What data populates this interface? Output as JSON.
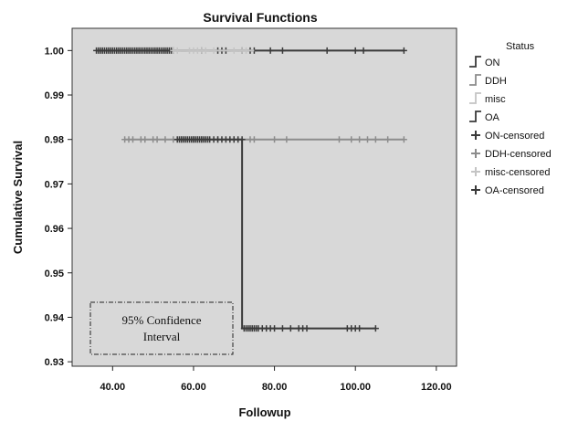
{
  "chart_data": {
    "type": "line",
    "title": "Survival Functions",
    "xlabel": "Followup",
    "ylabel": "Cumulative Survival",
    "xlim": [
      30,
      125
    ],
    "ylim": [
      0.929,
      1.005
    ],
    "x_ticks": [
      {
        "value": 40,
        "label": "40.00"
      },
      {
        "value": 60,
        "label": "60.00"
      },
      {
        "value": 80,
        "label": "80.00"
      },
      {
        "value": 100,
        "label": "100.00"
      },
      {
        "value": 120,
        "label": "120.00"
      }
    ],
    "y_ticks": [
      {
        "value": 0.93,
        "label": "0.93"
      },
      {
        "value": 0.94,
        "label": "0.94"
      },
      {
        "value": 0.95,
        "label": "0.95"
      },
      {
        "value": 0.96,
        "label": "0.96"
      },
      {
        "value": 0.97,
        "label": "0.97"
      },
      {
        "value": 0.98,
        "label": "0.98"
      },
      {
        "value": 0.99,
        "label": "0.99"
      },
      {
        "value": 1.0,
        "label": "1.00"
      }
    ],
    "grid": false,
    "legend_title": "Status",
    "legend_position": "right",
    "series": [
      {
        "name": "ON",
        "color": "#3a3a3a",
        "steps": [
          [
            36,
            1.0
          ],
          [
            112,
            1.0
          ]
        ],
        "censored": [
          36,
          36.5,
          37,
          37.5,
          38,
          38.5,
          39,
          39.5,
          40,
          40.5,
          41,
          41.5,
          42,
          42.5,
          43,
          43.5,
          44,
          44.5,
          45,
          45.5,
          46,
          46.5,
          47,
          47.5,
          48,
          48.5,
          49,
          49.5,
          50,
          50.5,
          51,
          51.5,
          52,
          52.5,
          53,
          53.5,
          54,
          54.5,
          55,
          62,
          66,
          67,
          68,
          72,
          74,
          75,
          79,
          82,
          93,
          100,
          102,
          112
        ]
      },
      {
        "name": "DDH",
        "color": "#8c8c8c",
        "steps": [
          [
            43,
            0.98
          ],
          [
            112,
            0.98
          ]
        ],
        "censored": [
          43,
          44,
          45,
          47,
          48,
          50,
          51,
          53,
          55,
          57,
          60,
          61,
          62,
          66,
          70,
          74,
          75,
          80,
          83,
          96,
          99,
          101,
          103,
          105,
          108,
          112
        ]
      },
      {
        "name": "misc",
        "color": "#c4c4c4",
        "steps": [
          [
            55,
            1.0
          ],
          [
            75,
            1.0
          ]
        ],
        "censored": [
          55,
          56,
          59,
          60,
          61,
          62,
          63,
          65,
          70,
          72,
          73
        ]
      },
      {
        "name": "OA",
        "color": "#3a3a3a",
        "steps": [
          [
            56,
            0.98
          ],
          [
            72,
            0.98
          ],
          [
            72,
            0.9375
          ],
          [
            105,
            0.9375
          ]
        ],
        "censored": [
          56,
          56.5,
          57,
          57.5,
          58,
          58.5,
          59,
          59.5,
          60,
          60.5,
          61,
          61.5,
          62,
          62.5,
          63,
          63.5,
          64,
          65,
          66,
          67,
          68,
          69,
          70,
          71,
          72,
          72.5,
          73,
          73.5,
          74,
          74.5,
          75,
          75.5,
          76,
          77,
          78,
          79,
          80,
          82,
          84,
          86,
          87,
          88,
          98,
          99,
          100,
          101,
          105
        ]
      }
    ],
    "legend_items": [
      {
        "label": "ON",
        "symbol": "step",
        "color": "#3a3a3a"
      },
      {
        "label": "DDH",
        "symbol": "step",
        "color": "#8c8c8c"
      },
      {
        "label": "misc",
        "symbol": "step",
        "color": "#c4c4c4"
      },
      {
        "label": "OA",
        "symbol": "step",
        "color": "#3a3a3a"
      },
      {
        "label": "ON-censored",
        "symbol": "plus",
        "color": "#3a3a3a"
      },
      {
        "label": "DDH-censored",
        "symbol": "plus",
        "color": "#8c8c8c"
      },
      {
        "label": "misc-censored",
        "symbol": "plus",
        "color": "#c4c4c4"
      },
      {
        "label": "OA-censored",
        "symbol": "plus",
        "color": "#3a3a3a"
      }
    ],
    "annotation": {
      "lines": [
        "95% Confidence",
        "Interval"
      ],
      "style": "dashed-box"
    },
    "colors": {
      "plot_background": "#d8d8d8",
      "frame": "#333333"
    }
  }
}
